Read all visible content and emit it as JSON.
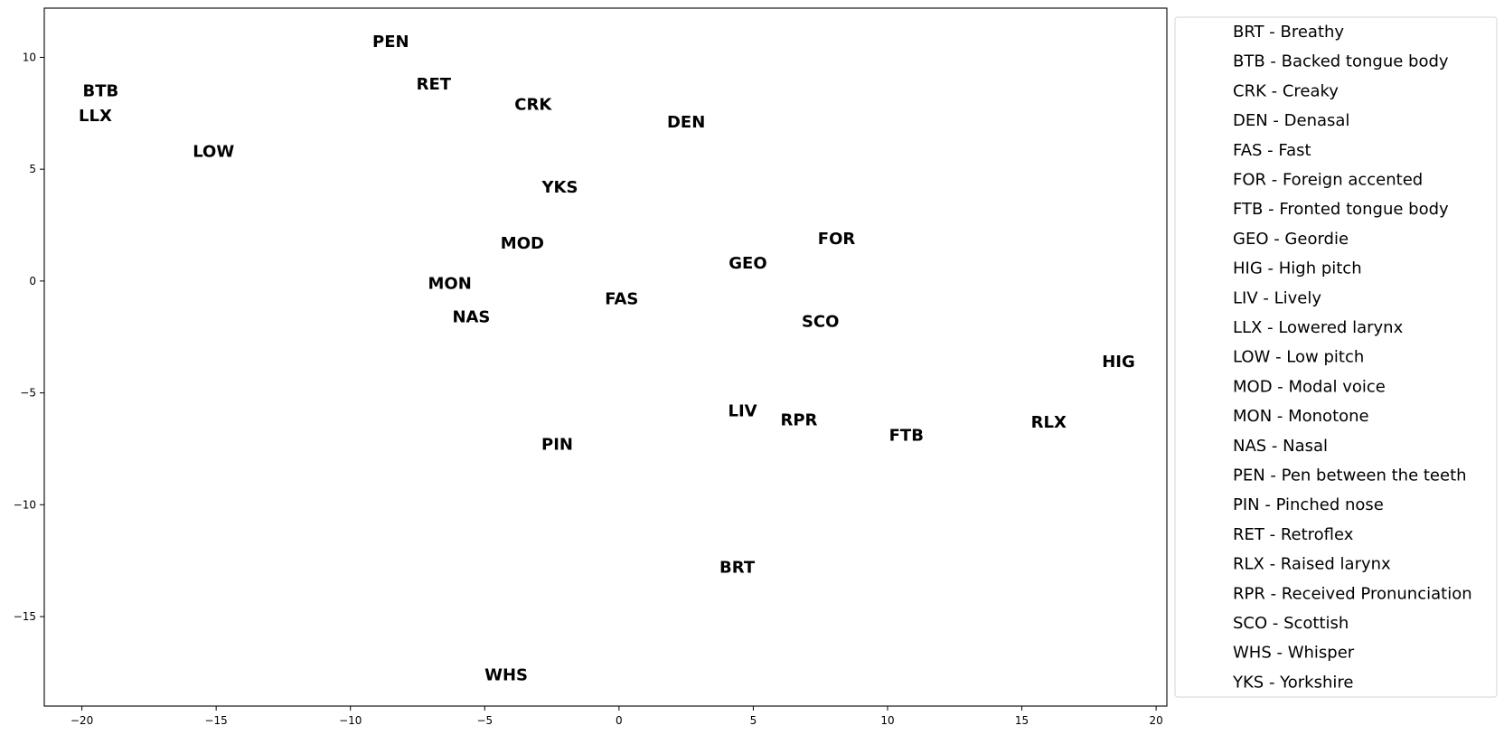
{
  "chart_data": {
    "type": "scatter",
    "title": "",
    "xlabel": "",
    "ylabel": "",
    "xlim": [
      -21.4,
      20.4
    ],
    "ylim": [
      -19.0,
      12.2
    ],
    "xticks": [
      -20,
      -15,
      -10,
      -5,
      0,
      5,
      10,
      15,
      20
    ],
    "xtick_labels": [
      "−20",
      "−15",
      "−10",
      "−5",
      "0",
      "5",
      "10",
      "15",
      "20"
    ],
    "yticks": [
      10,
      5,
      0,
      -5,
      -10,
      -15
    ],
    "ytick_labels": [
      "10",
      "5",
      "0",
      "−5",
      "−10",
      "−15"
    ],
    "grid": false,
    "legend_position": "outside-right",
    "points": [
      {
        "label": "PEN",
        "x": -8.5,
        "y": 10.7
      },
      {
        "label": "RET",
        "x": -6.9,
        "y": 8.8
      },
      {
        "label": "BTB",
        "x": -19.3,
        "y": 8.5
      },
      {
        "label": "LLX",
        "x": -19.5,
        "y": 7.4
      },
      {
        "label": "CRK",
        "x": -3.2,
        "y": 7.9
      },
      {
        "label": "DEN",
        "x": 2.5,
        "y": 7.1
      },
      {
        "label": "LOW",
        "x": -15.1,
        "y": 5.8
      },
      {
        "label": "YKS",
        "x": -2.2,
        "y": 4.2
      },
      {
        "label": "MOD",
        "x": -3.6,
        "y": 1.7
      },
      {
        "label": "FOR",
        "x": 8.1,
        "y": 1.9
      },
      {
        "label": "GEO",
        "x": 4.8,
        "y": 0.8
      },
      {
        "label": "MON",
        "x": -6.3,
        "y": -0.1
      },
      {
        "label": "FAS",
        "x": 0.1,
        "y": -0.8
      },
      {
        "label": "NAS",
        "x": -5.5,
        "y": -1.6
      },
      {
        "label": "SCO",
        "x": 7.5,
        "y": -1.8
      },
      {
        "label": "HIG",
        "x": 18.6,
        "y": -3.6
      },
      {
        "label": "LIV",
        "x": 4.6,
        "y": -5.8
      },
      {
        "label": "RPR",
        "x": 6.7,
        "y": -6.2
      },
      {
        "label": "RLX",
        "x": 16.0,
        "y": -6.3
      },
      {
        "label": "FTB",
        "x": 10.7,
        "y": -6.9
      },
      {
        "label": "PIN",
        "x": -2.3,
        "y": -7.3
      },
      {
        "label": "BRT",
        "x": 4.4,
        "y": -12.8
      },
      {
        "label": "WHS",
        "x": -4.2,
        "y": -17.6
      }
    ],
    "legend": [
      "BRT - Breathy",
      "BTB - Backed tongue body",
      "CRK - Creaky",
      "DEN - Denasal",
      "FAS - Fast",
      "FOR - Foreign accented",
      "FTB - Fronted tongue body",
      "GEO - Geordie",
      "HIG - High pitch",
      "LIV - Lively",
      "LLX - Lowered larynx",
      "LOW - Low pitch",
      "MOD - Modal voice",
      "MON - Monotone",
      "NAS - Nasal",
      "PEN - Pen between the teeth",
      "PIN - Pinched nose",
      "RET - Retroflex",
      "RLX - Raised larynx",
      "RPR - Received Pronunciation",
      "SCO - Scottish",
      "WHS - Whisper",
      "YKS - Yorkshire"
    ]
  }
}
